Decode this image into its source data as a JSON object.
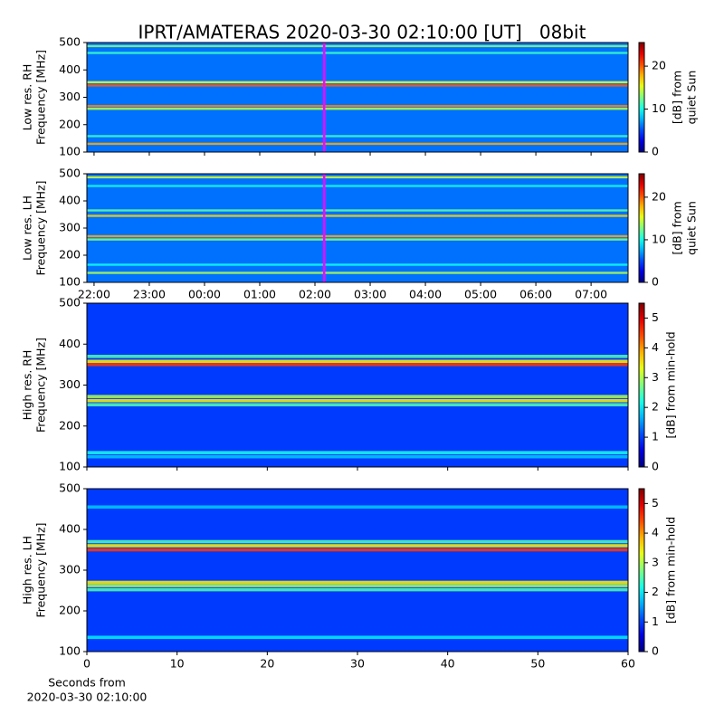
{
  "title": "IPRT/AMATERAS 2020-03-30 02:10:00 [UT]   08bit",
  "chart_data": [
    {
      "type": "heatmap",
      "ylabel": [
        "Low res. RH",
        "Frequency [MHz]"
      ],
      "ylim": [
        100,
        500
      ],
      "yticks": [
        100,
        200,
        300,
        400,
        500
      ],
      "xlim": [
        21.87,
        31.67
      ],
      "marker_x": 26.1667,
      "marker_color": "#ff00ff",
      "colorbar": {
        "label": [
          "[dB] from",
          "quiet Sun"
        ],
        "lim": [
          0,
          25.5
        ],
        "ticks": [
          0,
          10,
          20
        ]
      },
      "background": 6,
      "bands": [
        {
          "freq": 487,
          "level": 13
        },
        {
          "freq": 462,
          "level": 11
        },
        {
          "freq": 355,
          "level": 16
        },
        {
          "freq": 343,
          "level": 20
        },
        {
          "freq": 268,
          "level": 19
        },
        {
          "freq": 258,
          "level": 14
        },
        {
          "freq": 158,
          "level": 11
        },
        {
          "freq": 130,
          "level": 18
        }
      ]
    },
    {
      "type": "heatmap",
      "ylabel": [
        "Low res. LH",
        "Frequency [MHz]"
      ],
      "ylim": [
        100,
        500
      ],
      "yticks": [
        100,
        200,
        300,
        400,
        500
      ],
      "xlim": [
        21.87,
        31.67
      ],
      "xticks": [
        {
          "value": 22,
          "label": "22:00"
        },
        {
          "value": 23,
          "label": "23:00"
        },
        {
          "value": 24,
          "label": "00:00"
        },
        {
          "value": 25,
          "label": "01:00"
        },
        {
          "value": 26,
          "label": "02:00"
        },
        {
          "value": 27,
          "label": "03:00"
        },
        {
          "value": 28,
          "label": "04:00"
        },
        {
          "value": 29,
          "label": "05:00"
        },
        {
          "value": 30,
          "label": "06:00"
        },
        {
          "value": 31,
          "label": "07:00"
        }
      ],
      "marker_x": 26.1667,
      "marker_color": "#ff00ff",
      "colorbar": {
        "label": [
          "[dB] from",
          "quiet Sun"
        ],
        "lim": [
          0,
          25.5
        ],
        "ticks": [
          0,
          10,
          20
        ]
      },
      "background": 6,
      "bands": [
        {
          "freq": 487,
          "level": 15
        },
        {
          "freq": 455,
          "level": 10
        },
        {
          "freq": 365,
          "level": 12
        },
        {
          "freq": 345,
          "level": 17
        },
        {
          "freq": 270,
          "level": 18
        },
        {
          "freq": 258,
          "level": 13
        },
        {
          "freq": 165,
          "level": 10
        },
        {
          "freq": 135,
          "level": 14
        }
      ]
    },
    {
      "type": "heatmap",
      "ylabel": [
        "High res. RH",
        "Frequency [MHz]"
      ],
      "ylim": [
        100,
        500
      ],
      "yticks": [
        100,
        200,
        300,
        400,
        500
      ],
      "xlim": [
        0,
        60
      ],
      "colorbar": {
        "label": [
          "[dB] from min-hold"
        ],
        "lim": [
          0,
          5.5
        ],
        "ticks": [
          0,
          1,
          2,
          3,
          4,
          5
        ]
      },
      "background": 1,
      "bands": [
        {
          "freq": 370,
          "level": 2.5
        },
        {
          "freq": 358,
          "level": 3.5
        },
        {
          "freq": 350,
          "level": 4.5
        },
        {
          "freq": 272,
          "level": 3
        },
        {
          "freq": 262,
          "level": 3.5
        },
        {
          "freq": 252,
          "level": 2.5
        },
        {
          "freq": 135,
          "level": 2.2
        },
        {
          "freq": 125,
          "level": 1.8
        }
      ]
    },
    {
      "type": "heatmap",
      "ylabel": [
        "High res. LH",
        "Frequency [MHz]"
      ],
      "ylim": [
        100,
        500
      ],
      "yticks": [
        100,
        200,
        300,
        400,
        500
      ],
      "xlim": [
        0,
        60
      ],
      "xticks": [
        0,
        10,
        20,
        30,
        40,
        50,
        60
      ],
      "xlabel": [
        "Seconds from",
        "2020-03-30 02:10:00"
      ],
      "colorbar": {
        "label": [
          "[dB] from min-hold"
        ],
        "lim": [
          0,
          5.5
        ],
        "ticks": [
          0,
          1,
          2,
          3,
          4,
          5
        ]
      },
      "background": 1,
      "bands": [
        {
          "freq": 370,
          "level": 2.5
        },
        {
          "freq": 360,
          "level": 3.5
        },
        {
          "freq": 350,
          "level": 4.5
        },
        {
          "freq": 270,
          "level": 3.5
        },
        {
          "freq": 262,
          "level": 3
        },
        {
          "freq": 252,
          "level": 2.5
        },
        {
          "freq": 135,
          "level": 2
        },
        {
          "freq": 455,
          "level": 1.8
        }
      ]
    }
  ]
}
